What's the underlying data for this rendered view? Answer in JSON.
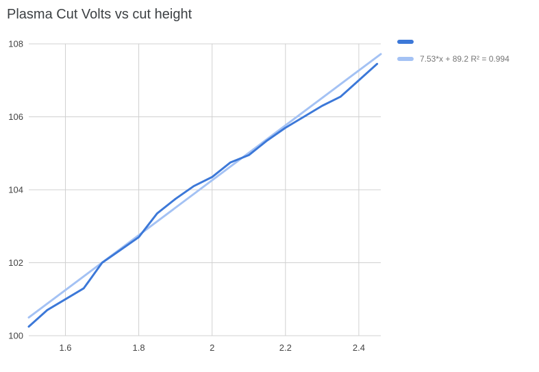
{
  "chart_data": {
    "type": "line",
    "title": "Plasma Cut Volts vs cut height",
    "title_color": "#3c4043",
    "xlabel": "",
    "ylabel": "",
    "xlim": [
      1.5,
      2.46
    ],
    "ylim": [
      100,
      108
    ],
    "x_ticks": [
      1.6,
      1.8,
      2.0,
      2.2,
      2.4
    ],
    "x_tick_labels": [
      "1.6",
      "1.8",
      "2",
      "2.2",
      "2.4"
    ],
    "y_ticks": [
      100,
      102,
      104,
      106,
      108
    ],
    "y_tick_labels": [
      "100",
      "102",
      "104",
      "106",
      "108"
    ],
    "grid": true,
    "grid_color": "#d0d0d0",
    "tick_color": "#424242",
    "legend_position": "top-right",
    "legend_text_color": "#757575",
    "series": [
      {
        "kind": "data",
        "label": "",
        "color": "#3c78d8",
        "stroke_width": 3,
        "x": [
          1.5,
          1.55,
          1.6,
          1.65,
          1.7,
          1.75,
          1.8,
          1.85,
          1.9,
          1.95,
          2.0,
          2.05,
          2.1,
          2.15,
          2.2,
          2.25,
          2.3,
          2.35,
          2.4,
          2.45
        ],
        "y": [
          100.25,
          100.7,
          101.0,
          101.3,
          102.0,
          102.35,
          102.7,
          103.35,
          103.75,
          104.1,
          104.35,
          104.75,
          104.95,
          105.35,
          105.7,
          106.0,
          106.3,
          106.55,
          107.0,
          107.45
        ]
      },
      {
        "kind": "trendline",
        "label": "7.53*x + 89.2 R² = 0.994",
        "equation": "7.53*x + 89.2",
        "r_squared": 0.994,
        "color": "#a4c2f4",
        "stroke_width": 3,
        "x": [
          1.5,
          2.46
        ],
        "y": [
          100.5,
          107.72
        ]
      }
    ]
  }
}
